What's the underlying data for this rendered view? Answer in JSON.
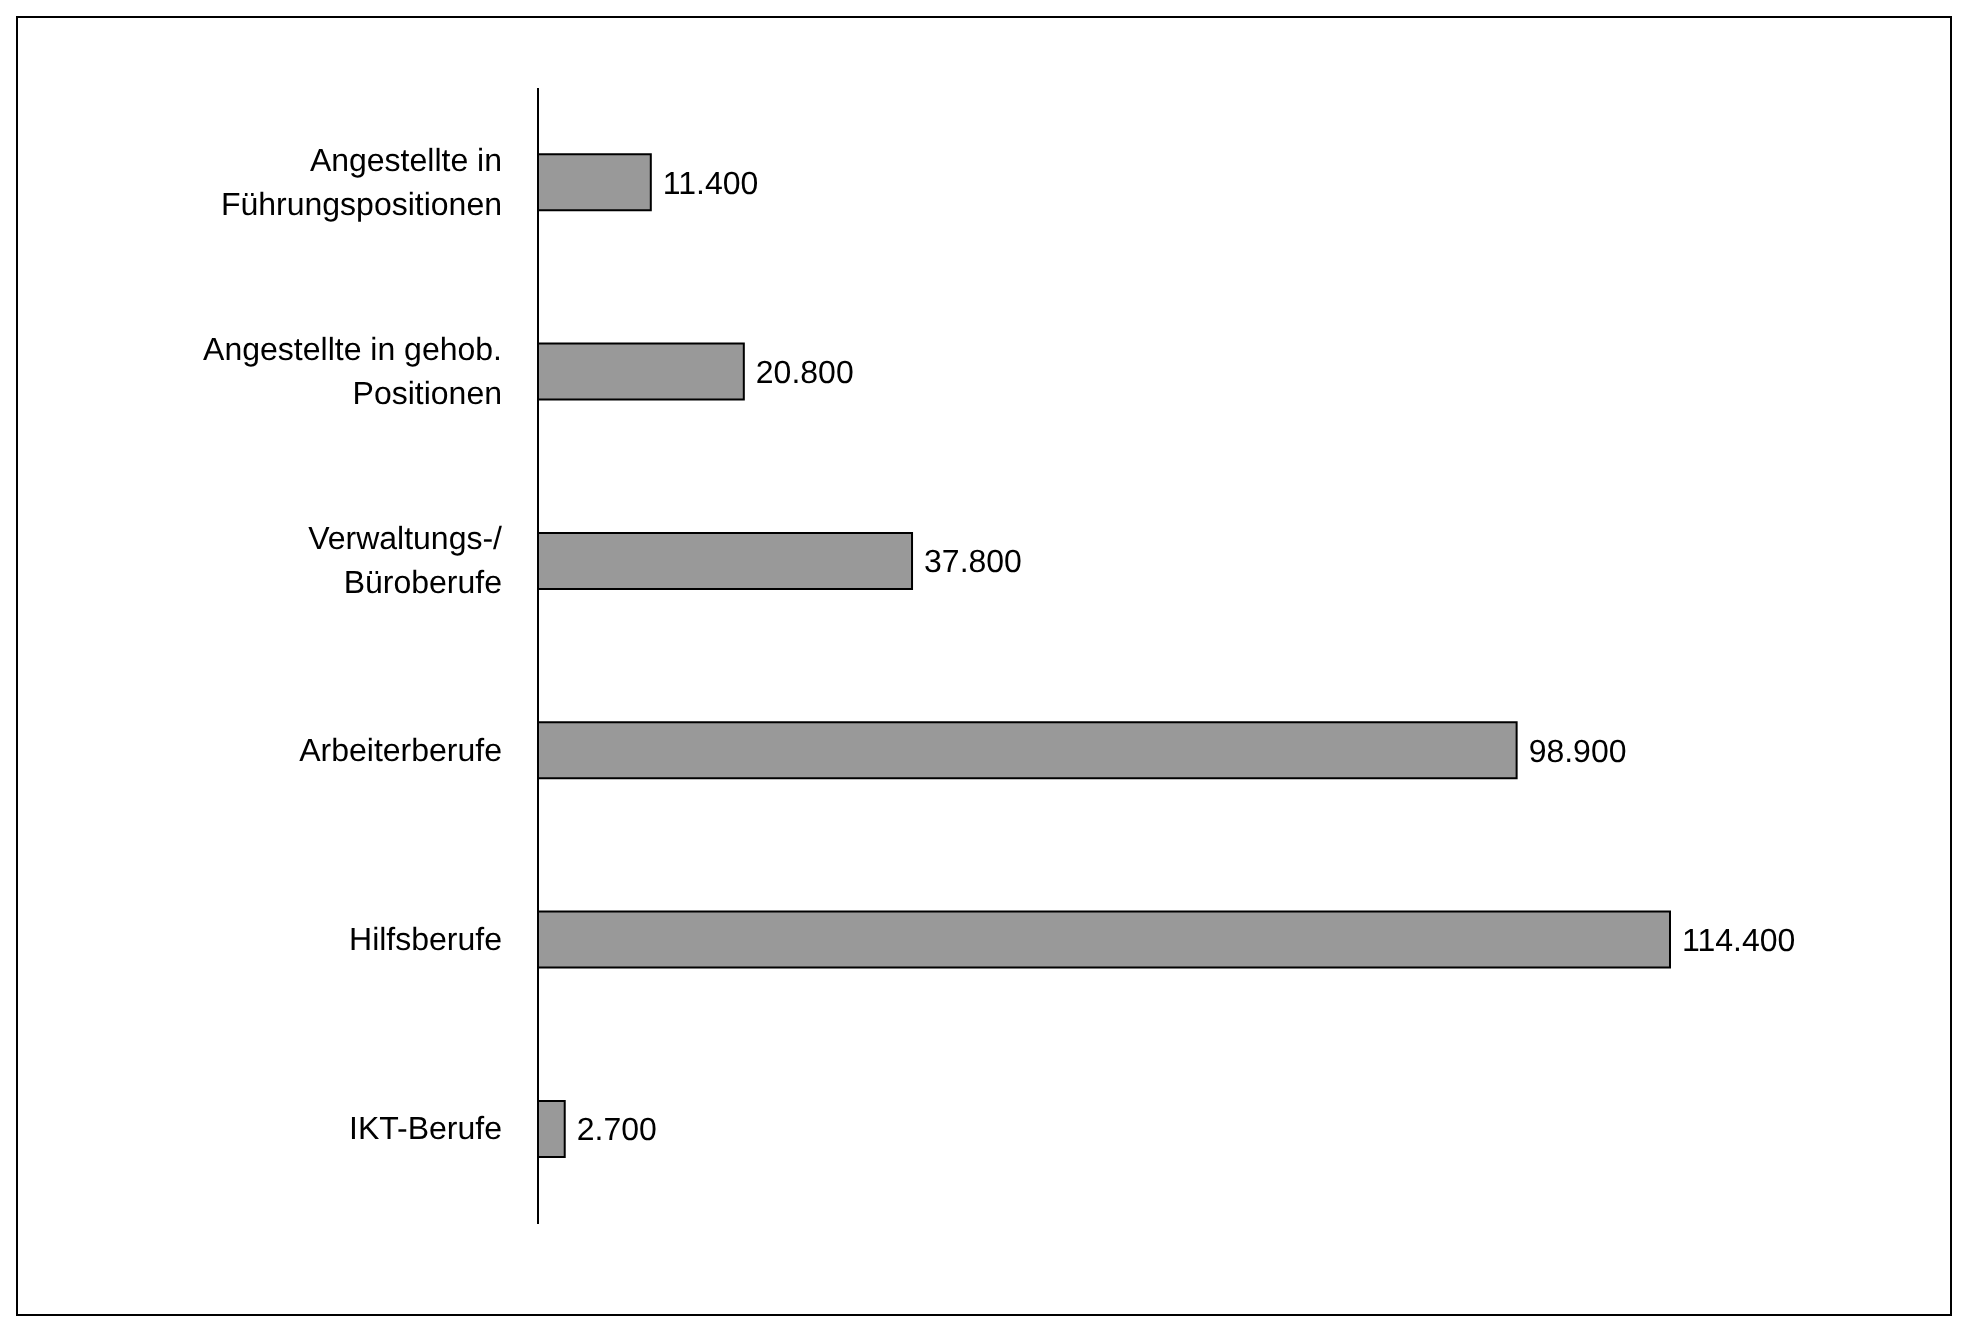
{
  "chart_data": {
    "type": "bar",
    "orientation": "horizontal",
    "categories": [
      "Angestellte in Führungspositionen",
      "Angestellte in gehob. Positionen",
      "Verwaltungs-/ Büroberufe",
      "Arbeiterberufe",
      "Hilfsberufe",
      "IKT-Berufe"
    ],
    "values": [
      11400,
      20800,
      37800,
      98900,
      114400,
      2700
    ],
    "value_labels": [
      "11.400",
      "20.800",
      "37.800",
      "98.900",
      "114.400",
      "2.700"
    ],
    "color": "#999999",
    "tick_labels": "y"
  }
}
